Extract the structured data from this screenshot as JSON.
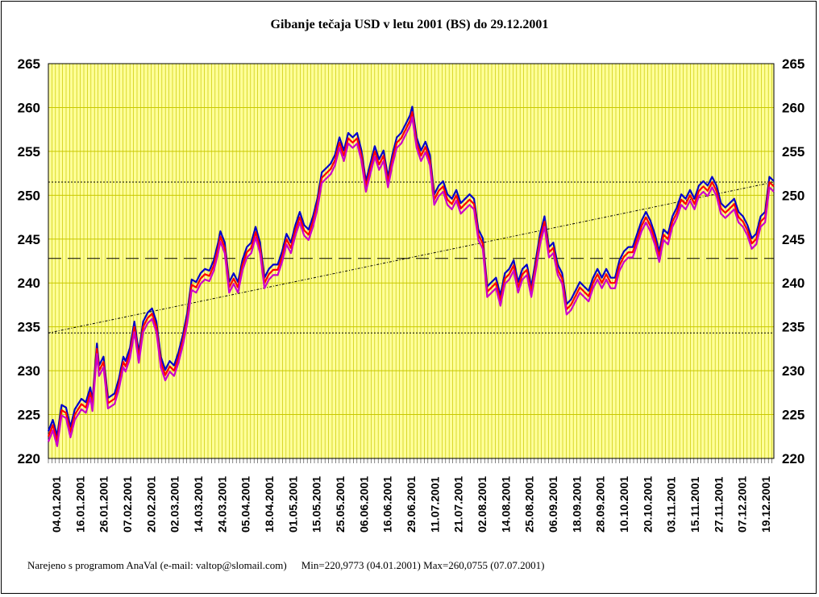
{
  "title": "Gibanje tečaja USD v letu 2001 (BS) do 29.12.2001",
  "footer": {
    "credit": "Narejeno s programom AnaVal (e-mail: valtop@slomail.com)",
    "minmax": "Min=220,9773 (04.01.2001) Max=260,0755 (07.07.2001)"
  },
  "colors": {
    "plot_background": "#ffff99",
    "grid": "#c8c800",
    "series_high": "#0000cc",
    "series_mid": "#ff0000",
    "series_low": "#cc00cc"
  },
  "chart_data": {
    "type": "line",
    "title": "Gibanje tečaja USD v letu 2001 (BS) do 29.12.2001",
    "ylim": [
      220,
      265
    ],
    "yticks": [
      220,
      225,
      230,
      235,
      240,
      245,
      250,
      255,
      260,
      265
    ],
    "y_axis_right_duplicate": true,
    "grid": true,
    "xtick_labels": [
      "04.01.2001",
      "16.01.2001",
      "26.01.2001",
      "07.02.2001",
      "20.02.2001",
      "02.03.2001",
      "14.03.2001",
      "24.03.2001",
      "05.04.2001",
      "18.04.2001",
      "01.05.2001",
      "15.05.2001",
      "25.05.2001",
      "06.06.2001",
      "16.06.2001",
      "29.06.2001",
      "11.07.2001",
      "21.07.2001",
      "02.08.2001",
      "14.08.2001",
      "25.08.2001",
      "06.09.2001",
      "18.09.2001",
      "28.09.2001",
      "10.10.2001",
      "20.10.2001",
      "03.11.2001",
      "15.11.2001",
      "27.11.2001",
      "07.12.2001",
      "19.12.2001"
    ],
    "x_count": 240,
    "anchors": [
      [
        0,
        222.5
      ],
      [
        2,
        223.8
      ],
      [
        4,
        222.0
      ],
      [
        6,
        225.5
      ],
      [
        8,
        225.2
      ],
      [
        10,
        223.0
      ],
      [
        12,
        225.0
      ],
      [
        15,
        226.2
      ],
      [
        17,
        225.8
      ],
      [
        19,
        227.5
      ],
      [
        20,
        226.0
      ],
      [
        22,
        232.5
      ],
      [
        23,
        230.0
      ],
      [
        25,
        231.0
      ],
      [
        27,
        226.3
      ],
      [
        30,
        226.8
      ],
      [
        32,
        228.5
      ],
      [
        34,
        231.0
      ],
      [
        35,
        230.5
      ],
      [
        37,
        232.0
      ],
      [
        39,
        235.0
      ],
      [
        41,
        231.5
      ],
      [
        43,
        235.0
      ],
      [
        45,
        236.0
      ],
      [
        47,
        236.5
      ],
      [
        49,
        235.0
      ],
      [
        51,
        231.0
      ],
      [
        53,
        229.5
      ],
      [
        55,
        230.5
      ],
      [
        57,
        230.0
      ],
      [
        59,
        231.5
      ],
      [
        61,
        233.5
      ],
      [
        63,
        236.0
      ],
      [
        65,
        239.8
      ],
      [
        67,
        239.5
      ],
      [
        69,
        240.5
      ],
      [
        71,
        241.0
      ],
      [
        73,
        240.8
      ],
      [
        75,
        242.0
      ],
      [
        77,
        244.0
      ],
      [
        78,
        245.3
      ],
      [
        80,
        244.0
      ],
      [
        82,
        239.5
      ],
      [
        84,
        240.5
      ],
      [
        86,
        239.5
      ],
      [
        88,
        242.0
      ],
      [
        90,
        243.5
      ],
      [
        92,
        244.0
      ],
      [
        94,
        245.8
      ],
      [
        96,
        244.0
      ],
      [
        98,
        240.0
      ],
      [
        100,
        241.0
      ],
      [
        102,
        241.5
      ],
      [
        104,
        241.5
      ],
      [
        106,
        243.0
      ],
      [
        108,
        245.0
      ],
      [
        110,
        244.0
      ],
      [
        112,
        246.0
      ],
      [
        114,
        247.5
      ],
      [
        116,
        246.0
      ],
      [
        118,
        245.5
      ],
      [
        120,
        247.0
      ],
      [
        122,
        249.0
      ],
      [
        124,
        252.0
      ],
      [
        126,
        252.5
      ],
      [
        128,
        253.0
      ],
      [
        130,
        254.0
      ],
      [
        132,
        256.0
      ],
      [
        134,
        254.5
      ],
      [
        136,
        256.5
      ],
      [
        138,
        256.0
      ],
      [
        140,
        256.5
      ],
      [
        142,
        254.5
      ],
      [
        144,
        251.0
      ],
      [
        146,
        253.0
      ],
      [
        148,
        255.0
      ],
      [
        150,
        253.5
      ],
      [
        152,
        254.5
      ],
      [
        154,
        251.5
      ],
      [
        156,
        254.0
      ],
      [
        158,
        256.0
      ],
      [
        160,
        256.5
      ],
      [
        162,
        257.5
      ],
      [
        164,
        258.5
      ],
      [
        165,
        259.5
      ],
      [
        167,
        256.0
      ],
      [
        169,
        254.5
      ],
      [
        171,
        255.5
      ],
      [
        173,
        254.0
      ],
      [
        175,
        249.5
      ],
      [
        177,
        250.5
      ],
      [
        179,
        251.0
      ],
      [
        181,
        249.5
      ],
      [
        183,
        249.0
      ],
      [
        185,
        250.0
      ],
      [
        187,
        248.5
      ],
      [
        189,
        249.0
      ],
      [
        191,
        249.5
      ],
      [
        193,
        249.0
      ],
      [
        195,
        245.5
      ],
      [
        197,
        244.5
      ],
      [
        199,
        239.0
      ],
      [
        201,
        239.5
      ],
      [
        203,
        240.0
      ],
      [
        205,
        238.0
      ],
      [
        207,
        240.5
      ],
      [
        209,
        241.0
      ],
      [
        211,
        242.0
      ],
      [
        213,
        239.5
      ],
      [
        215,
        241.0
      ],
      [
        217,
        241.5
      ],
      [
        219,
        239.0
      ],
      [
        221,
        242.0
      ],
      [
        223,
        245.0
      ],
      [
        225,
        247.0
      ],
      [
        227,
        243.5
      ],
      [
        229,
        244.0
      ],
      [
        231,
        241.5
      ],
      [
        233,
        240.5
      ],
      [
        235,
        237.0
      ],
      [
        237,
        237.5
      ],
      [
        239,
        238.5
      ],
      [
        241,
        239.5
      ],
      [
        243,
        239.0
      ],
      [
        245,
        238.5
      ],
      [
        247,
        240.0
      ],
      [
        249,
        241.0
      ],
      [
        251,
        240.0
      ],
      [
        253,
        241.0
      ],
      [
        255,
        240.0
      ],
      [
        257,
        240.0
      ],
      [
        259,
        242.0
      ],
      [
        261,
        243.0
      ],
      [
        263,
        243.5
      ],
      [
        265,
        243.5
      ],
      [
        267,
        245.0
      ],
      [
        269,
        246.5
      ],
      [
        271,
        247.5
      ],
      [
        273,
        246.5
      ],
      [
        275,
        245.0
      ],
      [
        277,
        243.0
      ],
      [
        279,
        245.5
      ],
      [
        281,
        245.0
      ],
      [
        283,
        247.0
      ],
      [
        285,
        248.0
      ],
      [
        287,
        249.5
      ],
      [
        289,
        249.0
      ],
      [
        291,
        250.0
      ],
      [
        293,
        249.0
      ],
      [
        295,
        250.5
      ],
      [
        297,
        251.0
      ],
      [
        299,
        250.5
      ],
      [
        301,
        251.5
      ],
      [
        303,
        250.5
      ],
      [
        305,
        248.5
      ],
      [
        307,
        248.0
      ],
      [
        309,
        248.5
      ],
      [
        311,
        249.0
      ],
      [
        313,
        247.5
      ],
      [
        315,
        247.0
      ],
      [
        317,
        246.0
      ],
      [
        319,
        244.5
      ],
      [
        321,
        245.0
      ],
      [
        323,
        247.0
      ],
      [
        325,
        247.5
      ],
      [
        327,
        251.5
      ],
      [
        329,
        251.0
      ]
    ],
    "series": [
      {
        "color": "#0000cc",
        "offset": 0.6
      },
      {
        "color": "#ff0000",
        "offset": 0.0
      },
      {
        "color": "#cc00cc",
        "offset": -0.6
      }
    ],
    "reference_lines": {
      "upper_dotted": 251.5,
      "lower_dotted": 234.3,
      "mean_dashed": 242.8,
      "trend_start": 234.3,
      "trend_end": 251.5
    }
  }
}
